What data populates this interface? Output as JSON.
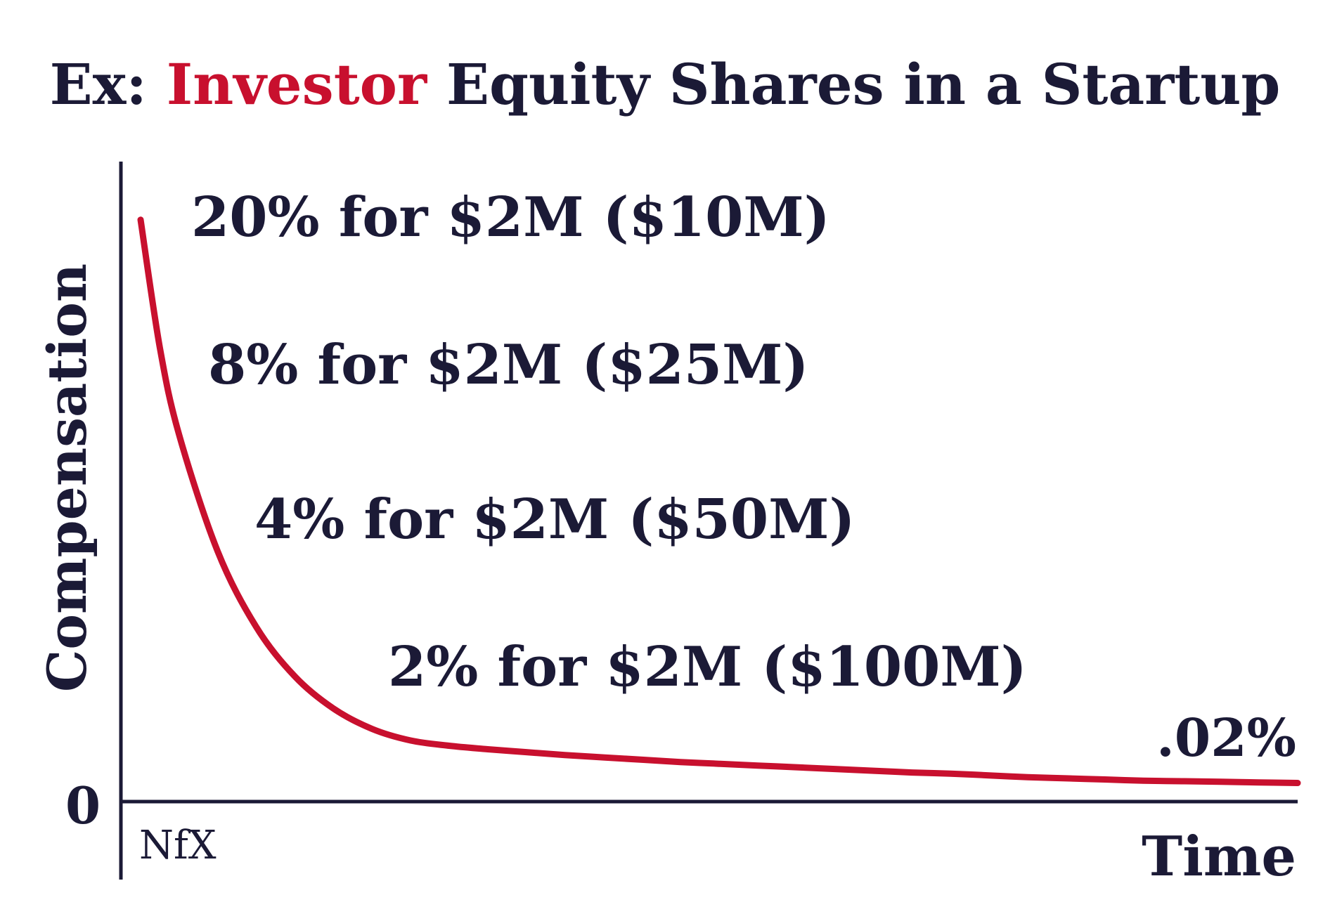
{
  "chart_data": {
    "type": "line",
    "title": {
      "prefix": "Ex: ",
      "highlight": "Investor",
      "suffix": " Equity Shares in a Startup"
    },
    "xlabel": "Time",
    "ylabel": "Compensation",
    "y_zero_label": "0",
    "series": [
      {
        "color": "#c8102e",
        "x": [
          0.0,
          0.5,
          1,
          2,
          3,
          4,
          5,
          6,
          7,
          8,
          9,
          10,
          11,
          12,
          13,
          14,
          15,
          16,
          17,
          18,
          19,
          20,
          21,
          22,
          23,
          24,
          25,
          26,
          27,
          28,
          29,
          30
        ],
        "values": [
          100.0,
          78.0,
          63.0,
          43.0,
          30.0,
          21.5,
          16.0,
          12.5,
          10.5,
          9.6,
          9.0,
          8.5,
          8.0,
          7.6,
          7.2,
          6.8,
          6.5,
          6.2,
          5.9,
          5.6,
          5.3,
          5.0,
          4.8,
          4.5,
          4.2,
          4.0,
          3.8,
          3.6,
          3.5,
          3.4,
          3.3,
          3.2
        ]
      }
    ],
    "xlim": [
      0,
      30
    ],
    "ylim": [
      0,
      110
    ],
    "grid": false,
    "annotations": [
      {
        "text": "20% for $2M ($10M)"
      },
      {
        "text": "8% for $2M ($25M)"
      },
      {
        "text": "4% for $2M ($50M)"
      },
      {
        "text": "2% for $2M ($100M)"
      },
      {
        "text": ".02%"
      }
    ],
    "watermark": "NfX",
    "colors": {
      "ink": "#1b1a36",
      "accent": "#c8102e"
    }
  }
}
